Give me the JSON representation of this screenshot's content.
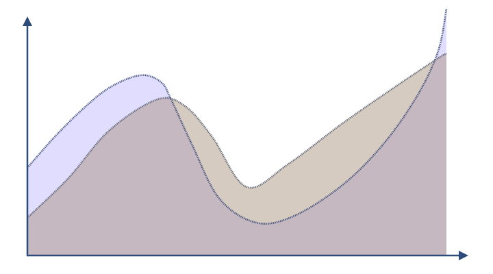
{
  "chart_data": {
    "type": "area",
    "xlim": [
      0,
      100
    ],
    "ylim": [
      0,
      100
    ],
    "series": [
      {
        "color": "#e0ddff",
        "line_color": "#3a4a78",
        "x": [
          0,
          6.5,
          13.1,
          19.6,
          27,
          31.9,
          34.3,
          39.2,
          45.8,
          54.7,
          63.7,
          75.2,
          85,
          93,
          98,
          100
        ],
        "values": [
          35.6,
          48.1,
          59.2,
          68.1,
          73.1,
          70.3,
          63.3,
          45.3,
          23.1,
          13.3,
          16.1,
          28.6,
          45.3,
          64.7,
          82.8,
          100
        ]
      },
      {
        "color": "#a48c74",
        "line_color": "#5a6070",
        "x": [
          0,
          9.8,
          19.6,
          31,
          37.6,
          44.1,
          52.3,
          62.1,
          75.2,
          88.2,
          98,
          100
        ],
        "values": [
          15.3,
          31.4,
          50.8,
          63.3,
          60.6,
          48.1,
          27.8,
          36.9,
          53.6,
          68.9,
          80,
          81.9
        ]
      }
    ]
  }
}
